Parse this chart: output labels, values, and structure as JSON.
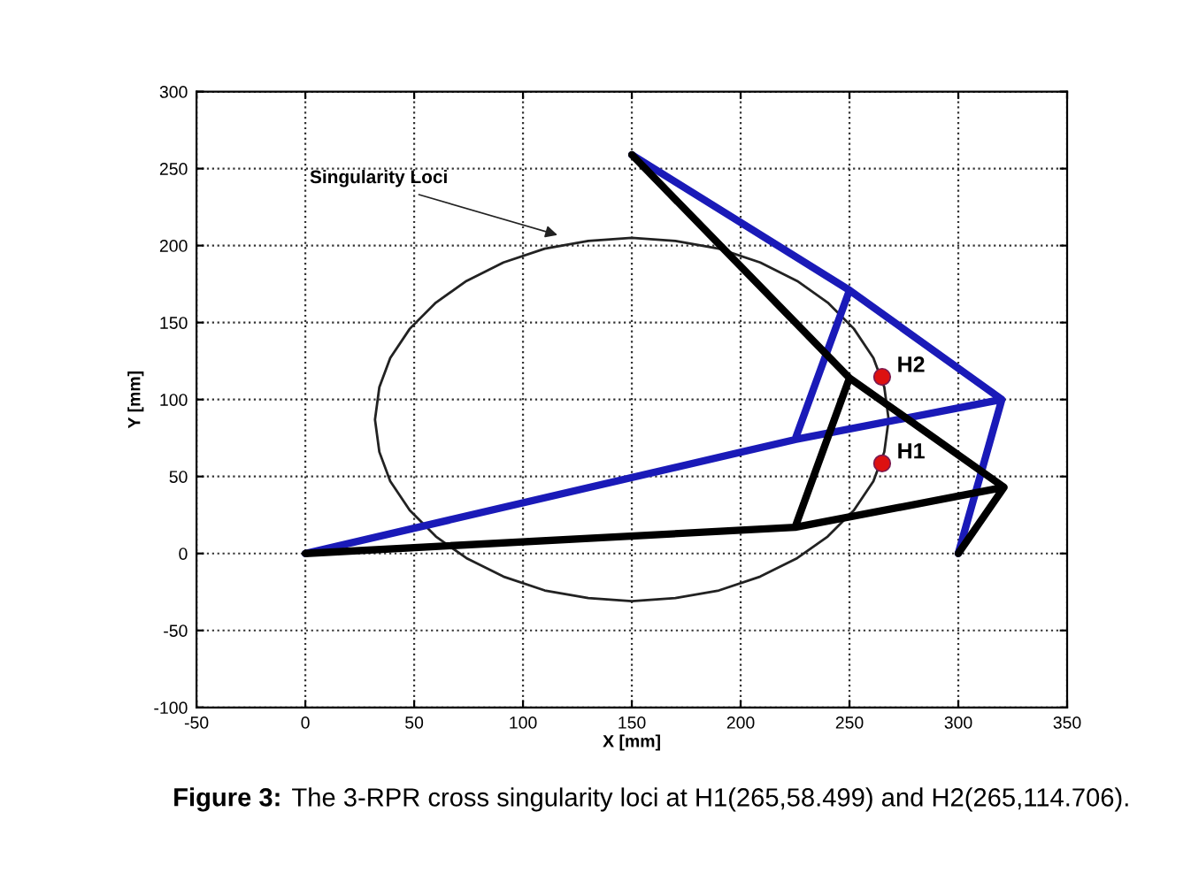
{
  "chart_data": {
    "type": "line",
    "xlabel": "X [mm]",
    "ylabel": "Y [mm]",
    "xlim": [
      -50,
      350
    ],
    "ylim": [
      -100,
      300
    ],
    "xticks": [
      -50,
      0,
      50,
      100,
      150,
      200,
      250,
      300,
      350
    ],
    "yticks": [
      -100,
      -50,
      0,
      50,
      100,
      150,
      200,
      250,
      300
    ],
    "grid": true,
    "legend": false,
    "series": [
      {
        "type": "line",
        "color": "#222222",
        "x": [
          268,
          266,
          261,
          252,
          240,
          226,
          209,
          190,
          170,
          150,
          130,
          110,
          91,
          74,
          60,
          48,
          39,
          34,
          32,
          34,
          39,
          48,
          60,
          74,
          91,
          110,
          130,
          150,
          170,
          190,
          209,
          226,
          240,
          252,
          261,
          266,
          268,
          266
        ],
        "values": [
          87,
          108,
          127,
          146,
          163,
          177,
          189,
          198,
          203,
          205,
          203,
          198,
          189,
          177,
          163,
          146,
          127,
          108,
          87,
          66,
          47,
          28,
          11,
          -3,
          -15,
          -24,
          -29,
          -31,
          -29,
          -24,
          -15,
          -3,
          11,
          28,
          47,
          66,
          87,
          108
        ]
      },
      {
        "type": "line",
        "color": "#1a1ab8",
        "x": [
          0,
          225,
          320,
          300,
          null,
          150,
          250,
          320,
          null,
          225,
          250
        ],
        "values": [
          0,
          74,
          100,
          0,
          null,
          259,
          171,
          100,
          null,
          74,
          171
        ]
      },
      {
        "type": "line",
        "color": "#000000",
        "x": [
          0,
          225,
          321,
          300,
          null,
          150,
          250,
          321,
          null,
          225,
          250
        ],
        "values": [
          0,
          17,
          43,
          0,
          null,
          259,
          114,
          43,
          null,
          17,
          114
        ]
      },
      {
        "type": "scatter",
        "color": "#dd1111",
        "marker": "circle",
        "x": [
          265,
          265
        ],
        "values": [
          58.499,
          114.706
        ]
      }
    ],
    "annotations": [
      "Singularity Loci",
      {
        "text": "H1",
        "x": 265,
        "y": 58.499
      },
      {
        "text": "H2",
        "x": 265,
        "y": 114.706
      },
      "Figure 3:",
      "The 3-RPR cross singularity loci at H1(265,58.499) and H2(265,114.706)."
    ]
  }
}
